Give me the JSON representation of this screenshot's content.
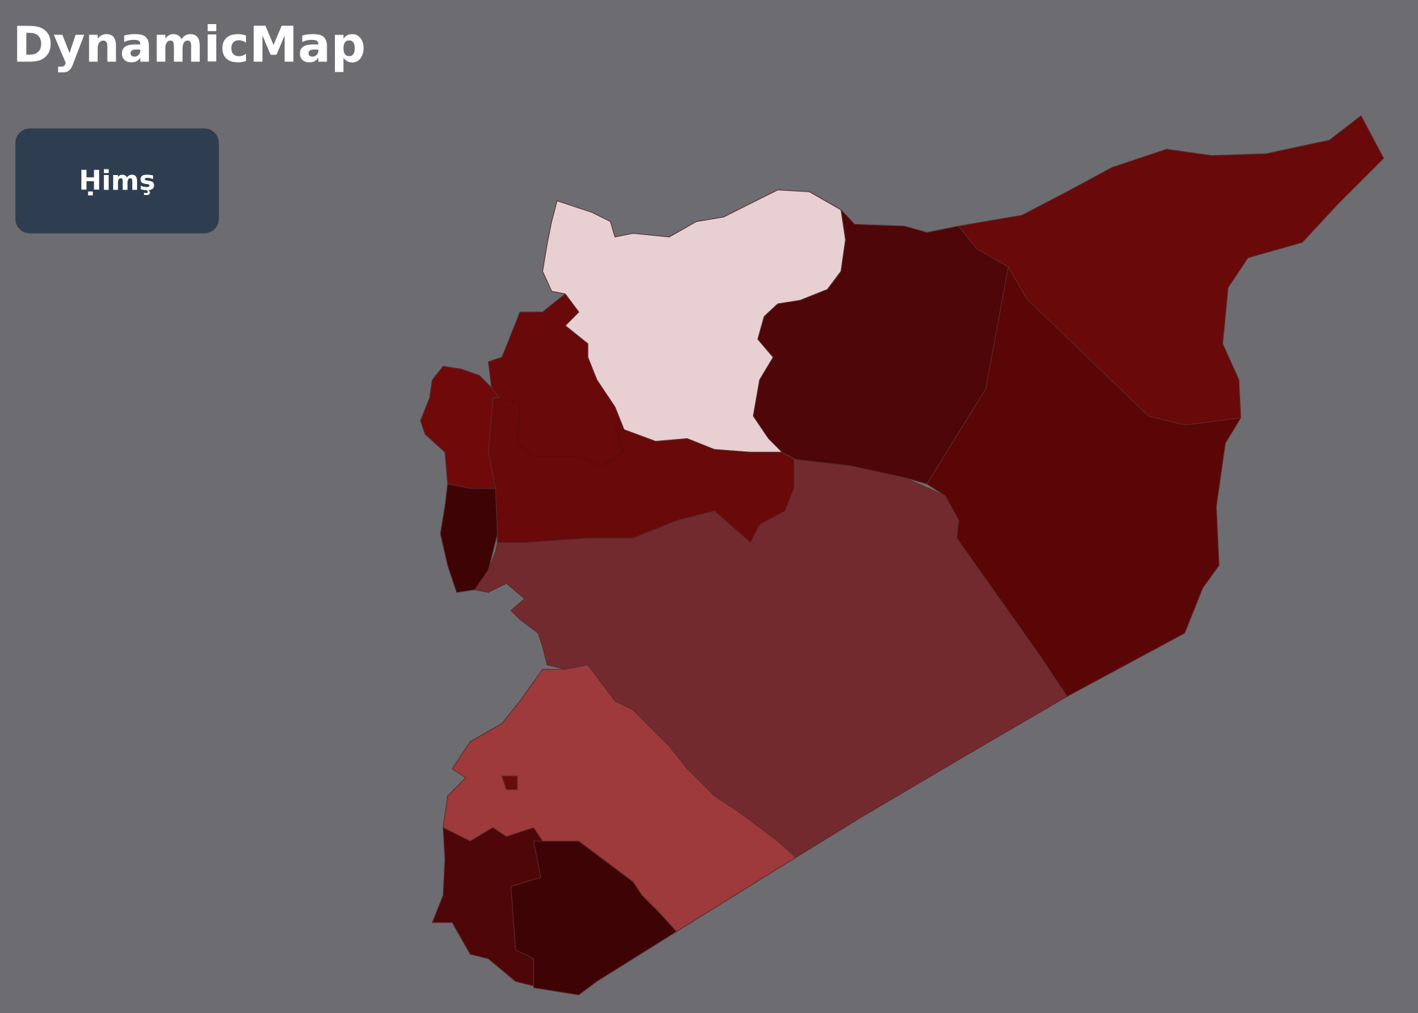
{
  "header": {
    "title": "DynamicMap"
  },
  "tooltip": {
    "label": "Ḥimş"
  }
}
